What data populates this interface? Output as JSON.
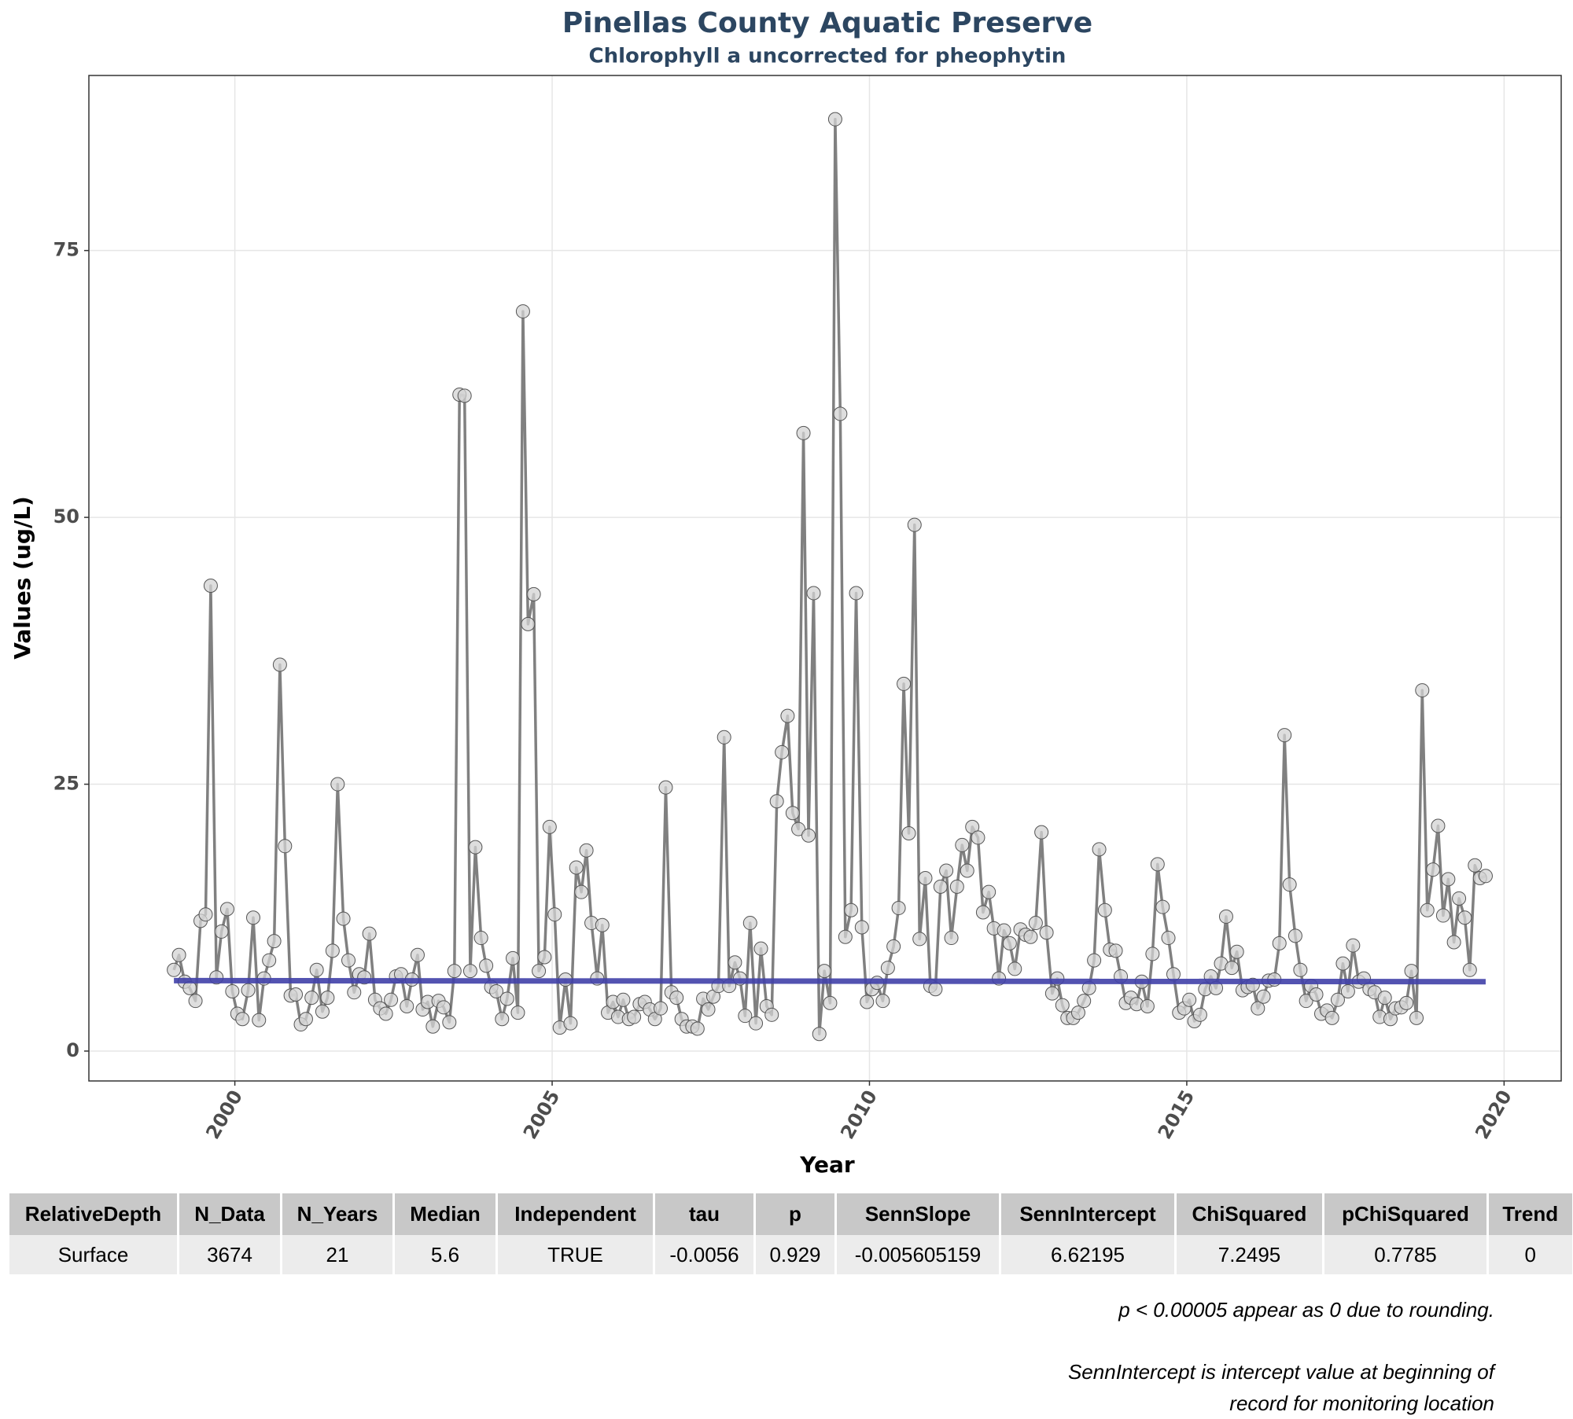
{
  "chart_data": {
    "type": "line",
    "title": "Pinellas County Aquatic Preserve",
    "subtitle": "Chlorophyll a uncorrected for pheophytin",
    "x_label": "Year",
    "y_label": "Values (ug/L)",
    "xlim": [
      1997.7,
      2020.9
    ],
    "ylim": [
      -2.8,
      91.4
    ],
    "xticks": [
      2000,
      2005,
      2010,
      2015,
      2020
    ],
    "yticks": [
      0,
      25,
      50,
      75
    ],
    "grid": true,
    "color": "#808080",
    "marker_color": "#d3d3d3",
    "x": [
      1999.04,
      1999.12,
      1999.21,
      1999.29,
      1999.38,
      1999.46,
      1999.54,
      1999.62,
      1999.71,
      1999.79,
      1999.88,
      1999.96,
      2000.04,
      2000.12,
      2000.21,
      2000.29,
      2000.38,
      2000.46,
      2000.54,
      2000.62,
      2000.71,
      2000.79,
      2000.88,
      2000.96,
      2001.04,
      2001.12,
      2001.21,
      2001.29,
      2001.38,
      2001.46,
      2001.54,
      2001.62,
      2001.71,
      2001.79,
      2001.88,
      2001.96,
      2002.04,
      2002.12,
      2002.21,
      2002.29,
      2002.38,
      2002.46,
      2002.54,
      2002.62,
      2002.71,
      2002.79,
      2002.88,
      2002.96,
      2003.04,
      2003.12,
      2003.21,
      2003.29,
      2003.38,
      2003.46,
      2003.54,
      2003.62,
      2003.71,
      2003.79,
      2003.88,
      2003.96,
      2004.04,
      2004.12,
      2004.21,
      2004.29,
      2004.38,
      2004.46,
      2004.54,
      2004.62,
      2004.71,
      2004.79,
      2004.88,
      2004.96,
      2005.04,
      2005.12,
      2005.21,
      2005.29,
      2005.38,
      2005.46,
      2005.54,
      2005.62,
      2005.71,
      2005.79,
      2005.88,
      2005.96,
      2006.04,
      2006.12,
      2006.21,
      2006.29,
      2006.38,
      2006.46,
      2006.54,
      2006.62,
      2006.71,
      2006.79,
      2006.88,
      2006.96,
      2007.04,
      2007.12,
      2007.21,
      2007.29,
      2007.38,
      2007.46,
      2007.54,
      2007.62,
      2007.71,
      2007.79,
      2007.88,
      2007.96,
      2008.04,
      2008.12,
      2008.21,
      2008.29,
      2008.38,
      2008.46,
      2008.54,
      2008.62,
      2008.71,
      2008.79,
      2008.88,
      2008.96,
      2009.04,
      2009.12,
      2009.21,
      2009.29,
      2009.38,
      2009.46,
      2009.54,
      2009.62,
      2009.71,
      2009.79,
      2009.88,
      2009.96,
      2010.04,
      2010.12,
      2010.21,
      2010.29,
      2010.38,
      2010.46,
      2010.54,
      2010.62,
      2010.71,
      2010.79,
      2010.88,
      2010.96,
      2011.04,
      2011.12,
      2011.21,
      2011.29,
      2011.38,
      2011.46,
      2011.54,
      2011.62,
      2011.71,
      2011.79,
      2011.88,
      2011.96,
      2012.04,
      2012.12,
      2012.21,
      2012.29,
      2012.38,
      2012.46,
      2012.54,
      2012.62,
      2012.71,
      2012.79,
      2012.88,
      2012.96,
      2013.04,
      2013.12,
      2013.21,
      2013.29,
      2013.38,
      2013.46,
      2013.54,
      2013.62,
      2013.71,
      2013.79,
      2013.88,
      2013.96,
      2014.04,
      2014.12,
      2014.21,
      2014.29,
      2014.38,
      2014.46,
      2014.54,
      2014.62,
      2014.71,
      2014.79,
      2014.88,
      2014.96,
      2015.04,
      2015.12,
      2015.21,
      2015.29,
      2015.38,
      2015.46,
      2015.54,
      2015.62,
      2015.71,
      2015.79,
      2015.88,
      2015.96,
      2016.04,
      2016.12,
      2016.21,
      2016.29,
      2016.38,
      2016.46,
      2016.54,
      2016.62,
      2016.71,
      2016.79,
      2016.88,
      2016.96,
      2017.04,
      2017.12,
      2017.21,
      2017.29,
      2017.38,
      2017.46,
      2017.54,
      2017.62,
      2017.71,
      2017.79,
      2017.88,
      2017.96,
      2018.04,
      2018.12,
      2018.21,
      2018.29,
      2018.38,
      2018.46,
      2018.54,
      2018.62,
      2018.71,
      2018.79,
      2018.88,
      2018.96,
      2019.04,
      2019.12,
      2019.21,
      2019.29,
      2019.38,
      2019.46,
      2019.54,
      2019.62,
      2019.71
    ],
    "values": [
      7.6,
      9.0,
      6.5,
      5.9,
      4.7,
      12.2,
      12.8,
      43.6,
      6.9,
      11.2,
      13.3,
      5.6,
      3.5,
      3.0,
      5.7,
      12.5,
      2.9,
      6.8,
      8.5,
      10.3,
      36.2,
      19.2,
      5.2,
      5.3,
      2.5,
      3.0,
      5.0,
      7.6,
      3.7,
      5.0,
      9.4,
      25.0,
      12.4,
      8.5,
      5.5,
      7.2,
      6.9,
      11.0,
      4.8,
      4.0,
      3.5,
      4.8,
      7.0,
      7.2,
      4.2,
      6.7,
      9.0,
      3.9,
      4.6,
      2.3,
      4.7,
      4.1,
      2.7,
      7.5,
      61.5,
      61.4,
      7.5,
      19.1,
      10.6,
      8.0,
      6.0,
      5.6,
      3.0,
      4.9,
      8.7,
      3.6,
      69.3,
      40.0,
      42.8,
      7.5,
      8.8,
      21.0,
      12.8,
      2.2,
      6.7,
      2.6,
      17.2,
      14.9,
      18.8,
      12.0,
      6.8,
      11.8,
      3.6,
      4.6,
      3.2,
      4.8,
      3.0,
      3.2,
      4.4,
      4.6,
      3.9,
      3.0,
      4.0,
      24.7,
      5.5,
      5.0,
      3.0,
      2.3,
      2.3,
      2.1,
      4.9,
      3.9,
      5.1,
      6.1,
      29.4,
      6.1,
      8.3,
      6.8,
      3.3,
      12.0,
      2.6,
      9.6,
      4.2,
      3.4,
      23.4,
      28.0,
      31.4,
      22.3,
      20.8,
      57.9,
      20.2,
      42.9,
      1.6,
      7.5,
      4.5,
      87.3,
      59.7,
      10.7,
      13.2,
      42.9,
      11.6,
      4.6,
      5.8,
      6.4,
      4.7,
      7.8,
      9.8,
      13.4,
      34.4,
      20.4,
      49.3,
      10.5,
      16.2,
      6.1,
      5.8,
      15.4,
      16.9,
      10.6,
      15.4,
      19.3,
      16.9,
      21.0,
      20.0,
      13.0,
      14.9,
      11.5,
      6.8,
      11.3,
      10.1,
      7.7,
      11.4,
      10.9,
      10.7,
      12.0,
      20.5,
      11.1,
      5.4,
      6.8,
      4.3,
      3.1,
      3.1,
      3.6,
      4.7,
      5.9,
      8.5,
      18.9,
      13.2,
      9.5,
      9.4,
      7.0,
      4.5,
      5.0,
      4.4,
      6.5,
      4.2,
      9.1,
      17.5,
      13.5,
      10.6,
      7.2,
      3.6,
      4.0,
      4.8,
      2.8,
      3.4,
      5.8,
      7.0,
      5.9,
      8.2,
      12.6,
      7.8,
      9.3,
      5.7,
      6.0,
      6.2,
      4.0,
      5.1,
      6.6,
      6.7,
      10.1,
      29.6,
      15.6,
      10.8,
      7.6,
      4.7,
      6.1,
      5.3,
      3.5,
      3.8,
      3.1,
      4.8,
      8.2,
      5.6,
      9.9,
      6.5,
      6.8,
      5.8,
      5.5,
      3.2,
      5.0,
      3.0,
      4.0,
      4.1,
      4.5,
      7.5,
      3.1,
      33.8,
      13.2,
      17.0,
      21.1,
      12.7,
      16.1,
      10.2,
      14.3,
      12.5,
      7.6,
      17.4,
      16.2,
      16.4
    ],
    "trend": {
      "x": [
        1999.04,
        2019.71
      ],
      "values": [
        6.6,
        6.5
      ],
      "color": "#4040a8"
    }
  },
  "table": {
    "columns": [
      "RelativeDepth",
      "N_Data",
      "N_Years",
      "Median",
      "Independent",
      "tau",
      "p",
      "SennSlope",
      "SennIntercept",
      "ChiSquared",
      "pChiSquared",
      "Trend"
    ],
    "rows": [
      [
        "Surface",
        "3674",
        "21",
        "5.6",
        "TRUE",
        "-0.0056",
        "0.929",
        "-0.005605159",
        "6.62195",
        "7.2495",
        "0.7785",
        "0"
      ]
    ]
  },
  "notes": [
    {
      "lines": [
        "p < 0.00005 appear as 0 due to rounding."
      ]
    },
    {
      "lines": [
        "SennIntercept is intercept value at beginning of",
        "record for monitoring location"
      ]
    }
  ]
}
